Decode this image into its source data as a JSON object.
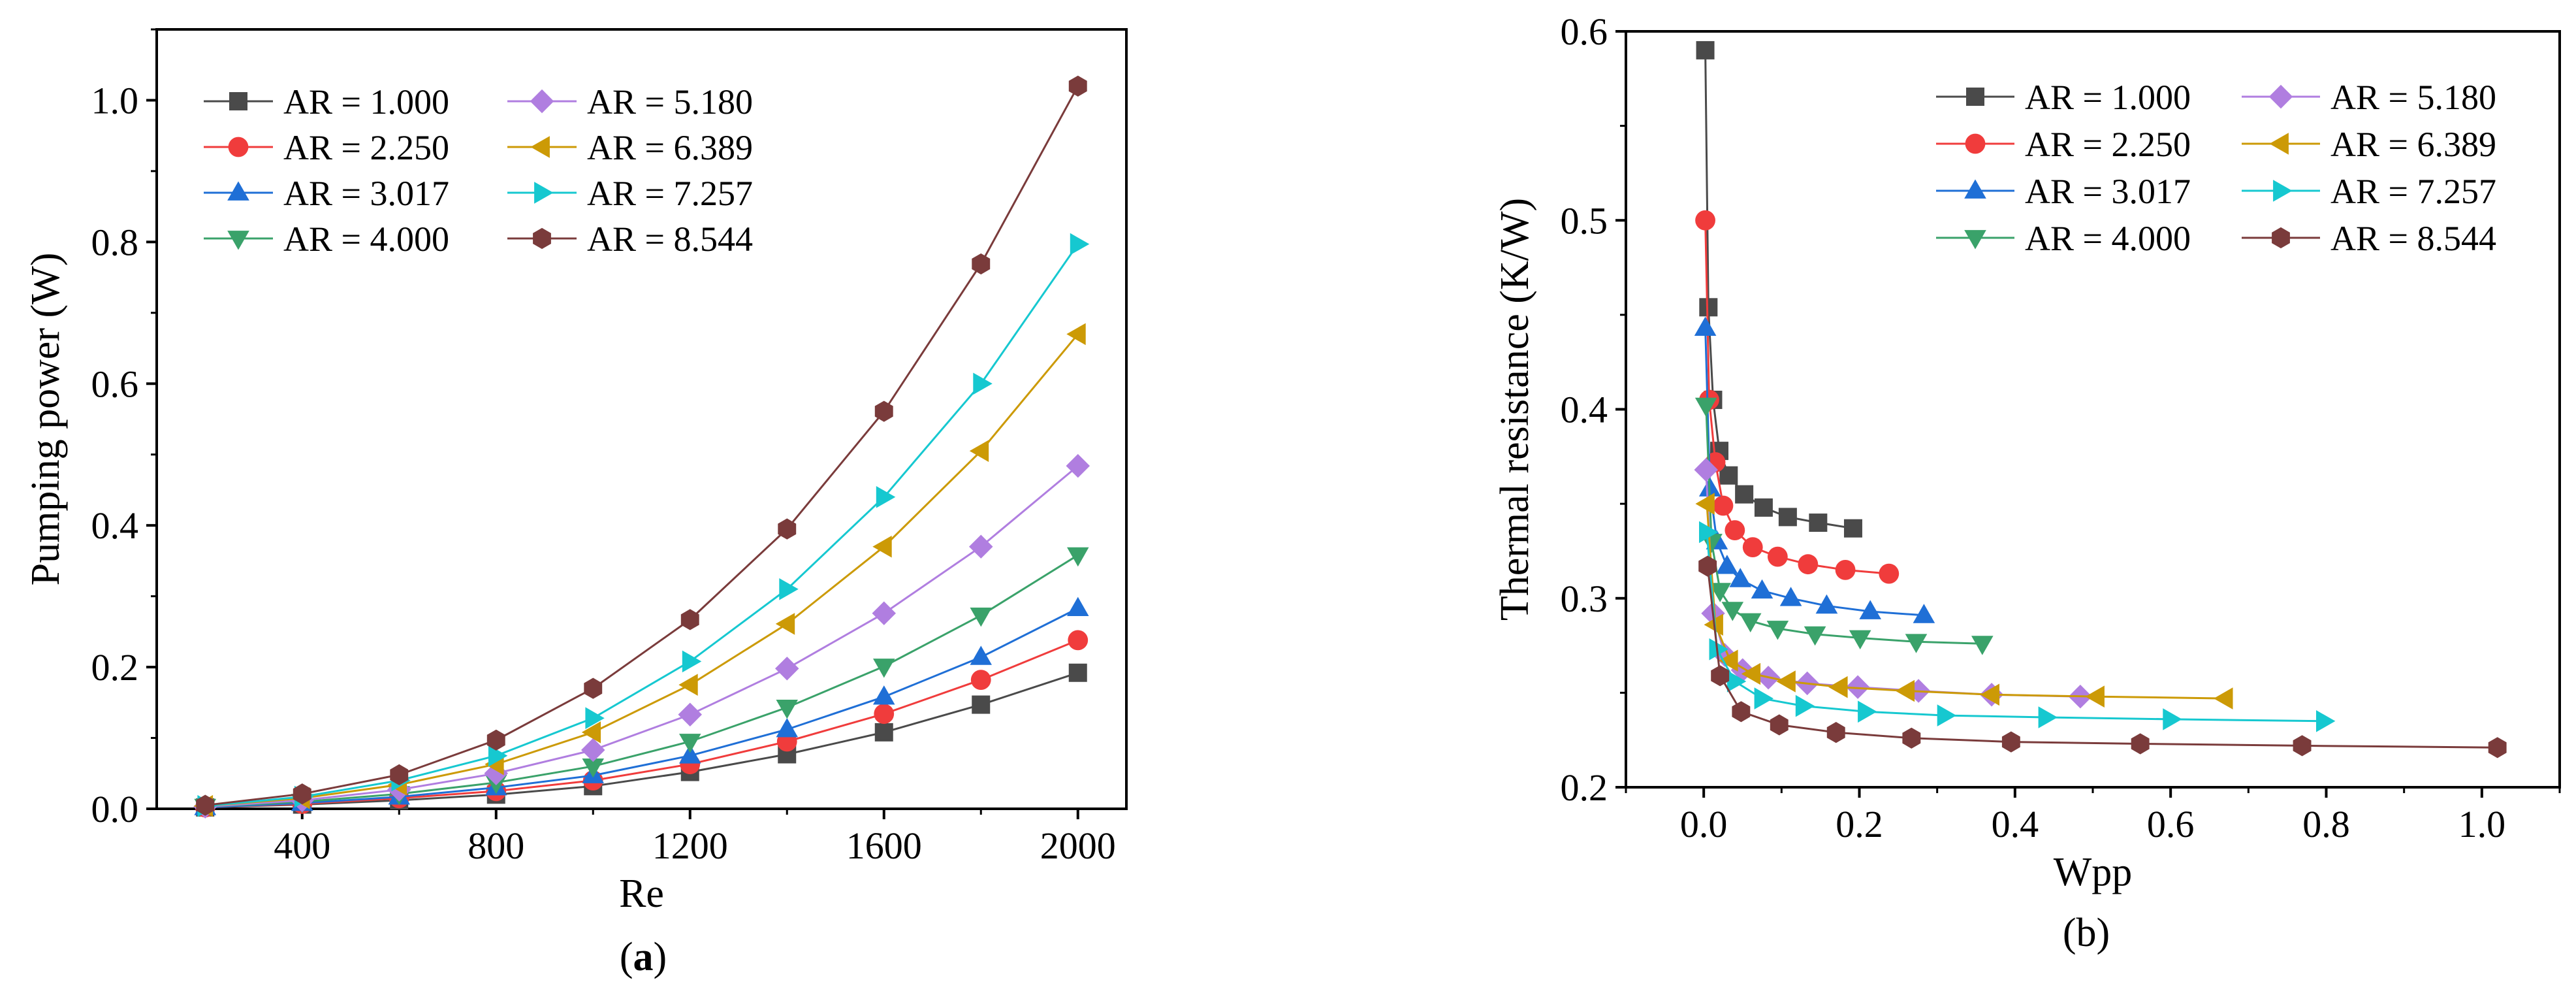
{
  "figure": {
    "caption_a_open": "(",
    "caption_a_letter": "a",
    "caption_a_close": ")",
    "caption_b": "(b)"
  },
  "chart_data": [
    {
      "type": "line",
      "panel": "a",
      "title": "",
      "xlabel": "Re",
      "ylabel": "Pumping power  (W)",
      "xlim": [
        100,
        2100
      ],
      "ylim": [
        0,
        1.1
      ],
      "xticks": [
        400,
        800,
        1200,
        1600,
        2000
      ],
      "xtick_labels": [
        "400",
        "800",
        "1200",
        "1600",
        "2000"
      ],
      "yticks": [
        0,
        0.2,
        0.4,
        0.6,
        0.8,
        1.0
      ],
      "ytick_labels": [
        "0.0",
        "0.2",
        "0.4",
        "0.6",
        "0.8",
        "1.0"
      ],
      "legend_position": "top-left",
      "x": [
        200,
        400,
        600,
        800,
        1000,
        1200,
        1400,
        1600,
        1800,
        2000
      ],
      "series": [
        {
          "name": "AR = 1.000",
          "color": "#4a4a4a",
          "marker": "square",
          "values": [
            0.002,
            0.006,
            0.012,
            0.02,
            0.032,
            0.052,
            0.077,
            0.108,
            0.147,
            0.192
          ]
        },
        {
          "name": "AR = 2.250",
          "color": "#f03c3c",
          "marker": "circle",
          "values": [
            0.002,
            0.007,
            0.015,
            0.025,
            0.04,
            0.063,
            0.095,
            0.134,
            0.182,
            0.238
          ]
        },
        {
          "name": "AR = 3.017",
          "color": "#1f6fd6",
          "marker": "triangle-up",
          "values": [
            0.002,
            0.008,
            0.017,
            0.03,
            0.047,
            0.075,
            0.112,
            0.158,
            0.214,
            0.283
          ]
        },
        {
          "name": "AR = 4.000",
          "color": "#3aa26a",
          "marker": "triangle-down",
          "values": [
            0.003,
            0.01,
            0.021,
            0.037,
            0.06,
            0.095,
            0.143,
            0.201,
            0.273,
            0.358
          ]
        },
        {
          "name": "AR = 5.180",
          "color": "#b07ee0",
          "marker": "diamond",
          "values": [
            0.003,
            0.012,
            0.027,
            0.05,
            0.083,
            0.133,
            0.198,
            0.276,
            0.37,
            0.484
          ]
        },
        {
          "name": "AR = 6.389",
          "color": "#cc9a06",
          "marker": "triangle-left",
          "values": [
            0.004,
            0.015,
            0.034,
            0.063,
            0.108,
            0.175,
            0.261,
            0.37,
            0.505,
            0.67
          ]
        },
        {
          "name": "AR = 7.257",
          "color": "#16c8d0",
          "marker": "triangle-right",
          "values": [
            0.004,
            0.017,
            0.04,
            0.075,
            0.128,
            0.208,
            0.31,
            0.44,
            0.6,
            0.797
          ]
        },
        {
          "name": "AR = 8.544",
          "color": "#7a3b3b",
          "marker": "hexagon",
          "values": [
            0.005,
            0.021,
            0.048,
            0.097,
            0.17,
            0.267,
            0.395,
            0.561,
            0.769,
            1.02
          ]
        }
      ]
    },
    {
      "type": "line",
      "panel": "b",
      "title": "",
      "xlabel": "Wpp",
      "ylabel": "Thermal resistance  (K/W)",
      "xlim": [
        -0.1,
        1.1
      ],
      "ylim": [
        0.2,
        0.6
      ],
      "xticks": [
        0.0,
        0.2,
        0.4,
        0.6,
        0.8,
        1.0
      ],
      "xtick_labels": [
        "0.0",
        "0.2",
        "0.4",
        "0.6",
        "0.8",
        "1.0"
      ],
      "yticks": [
        0.2,
        0.3,
        0.4,
        0.5,
        0.6
      ],
      "ytick_labels": [
        "0.2",
        "0.3",
        "0.4",
        "0.5",
        "0.6"
      ],
      "legend_position": "top-right",
      "series": [
        {
          "name": "AR = 1.000",
          "color": "#4a4a4a",
          "marker": "square",
          "x": [
            0.002,
            0.006,
            0.012,
            0.02,
            0.032,
            0.052,
            0.077,
            0.108,
            0.147,
            0.192
          ],
          "y": [
            0.59,
            0.454,
            0.405,
            0.378,
            0.365,
            0.355,
            0.348,
            0.343,
            0.34,
            0.337
          ]
        },
        {
          "name": "AR = 2.250",
          "color": "#f03c3c",
          "marker": "circle",
          "x": [
            0.002,
            0.007,
            0.015,
            0.025,
            0.04,
            0.063,
            0.095,
            0.134,
            0.182,
            0.238
          ],
          "y": [
            0.5,
            0.405,
            0.372,
            0.349,
            0.336,
            0.327,
            0.322,
            0.318,
            0.315,
            0.313
          ]
        },
        {
          "name": "AR = 3.017",
          "color": "#1f6fd6",
          "marker": "triangle-up",
          "x": [
            0.002,
            0.008,
            0.017,
            0.03,
            0.047,
            0.075,
            0.112,
            0.158,
            0.214,
            0.283
          ],
          "y": [
            0.443,
            0.358,
            0.33,
            0.317,
            0.31,
            0.304,
            0.3,
            0.296,
            0.293,
            0.291
          ]
        },
        {
          "name": "AR = 4.000",
          "color": "#3aa26a",
          "marker": "triangle-down",
          "x": [
            0.003,
            0.01,
            0.021,
            0.037,
            0.06,
            0.095,
            0.143,
            0.201,
            0.273,
            0.358
          ],
          "y": [
            0.402,
            0.33,
            0.304,
            0.294,
            0.288,
            0.284,
            0.281,
            0.279,
            0.277,
            0.276
          ]
        },
        {
          "name": "AR = 5.180",
          "color": "#b07ee0",
          "marker": "diamond",
          "x": [
            0.003,
            0.012,
            0.027,
            0.05,
            0.083,
            0.133,
            0.198,
            0.276,
            0.37,
            0.484
          ],
          "y": [
            0.368,
            0.292,
            0.27,
            0.262,
            0.258,
            0.255,
            0.253,
            0.251,
            0.249,
            0.248
          ]
        },
        {
          "name": "AR = 6.389",
          "color": "#cc9a06",
          "marker": "triangle-left",
          "x": [
            0.004,
            0.015,
            0.034,
            0.063,
            0.108,
            0.175,
            0.261,
            0.37,
            0.505,
            0.67
          ],
          "y": [
            0.35,
            0.286,
            0.267,
            0.26,
            0.256,
            0.253,
            0.251,
            0.249,
            0.248,
            0.247
          ]
        },
        {
          "name": "AR = 7.257",
          "color": "#16c8d0",
          "marker": "triangle-right",
          "x": [
            0.004,
            0.017,
            0.04,
            0.075,
            0.128,
            0.208,
            0.31,
            0.44,
            0.6,
            0.797
          ],
          "y": [
            0.335,
            0.273,
            0.256,
            0.247,
            0.243,
            0.24,
            0.238,
            0.237,
            0.236,
            0.235
          ]
        },
        {
          "name": "AR = 8.544",
          "color": "#7a3b3b",
          "marker": "hexagon",
          "x": [
            0.005,
            0.021,
            0.048,
            0.097,
            0.17,
            0.267,
            0.395,
            0.561,
            0.769,
            1.02
          ],
          "y": [
            0.317,
            0.259,
            0.24,
            0.233,
            0.229,
            0.226,
            0.224,
            0.223,
            0.222,
            0.221
          ]
        }
      ]
    }
  ]
}
